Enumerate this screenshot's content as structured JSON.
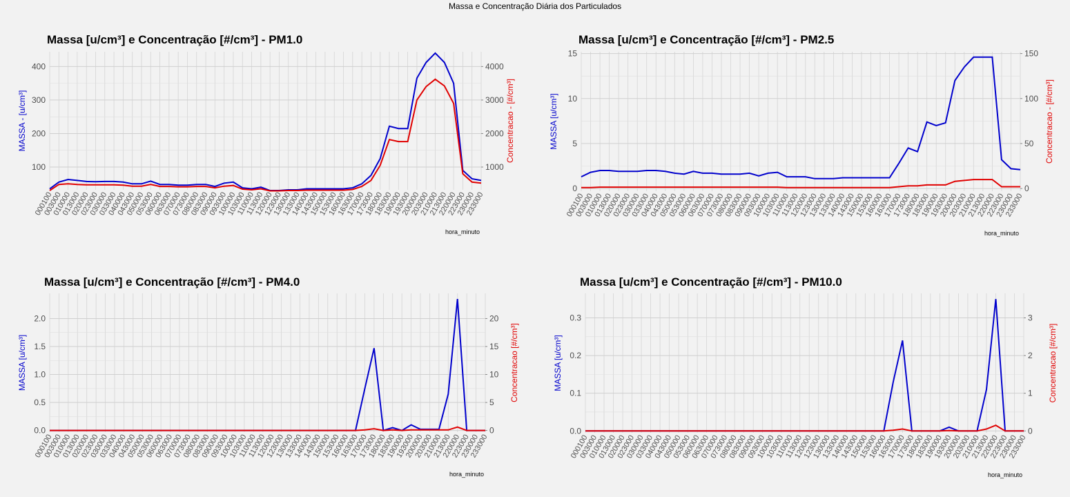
{
  "title": "Massa e Concentração Diária dos Particulados",
  "chart_data": [
    {
      "type": "line",
      "title": "Massa [u/cm³] e Concentração [#/cm³] - PM1.0",
      "xlabel": "hora_minuto",
      "ylabel": "MASSA - [u/cm³]",
      "y2label": "Concentracao - [#/cm³]",
      "categories": [
        "000100",
        "003000",
        "010000",
        "013000",
        "020000",
        "023000",
        "030000",
        "033000",
        "040000",
        "043000",
        "050000",
        "053000",
        "060000",
        "063000",
        "070000",
        "073000",
        "080000",
        "083000",
        "090000",
        "093000",
        "100000",
        "103000",
        "110000",
        "113000",
        "120000",
        "123000",
        "130000",
        "133000",
        "140000",
        "143000",
        "150000",
        "153000",
        "160000",
        "163000",
        "170000",
        "173000",
        "180000",
        "183000",
        "190000",
        "193000",
        "200000",
        "203000",
        "210000",
        "213000",
        "220000",
        "223000",
        "230000",
        "233000"
      ],
      "series": [
        {
          "color": "#0000cc",
          "values": [
            35,
            55,
            63,
            60,
            57,
            56,
            57,
            57,
            55,
            50,
            50,
            58,
            48,
            48,
            46,
            46,
            48,
            48,
            42,
            52,
            55,
            38,
            35,
            40,
            30,
            30,
            32,
            32,
            35,
            35,
            35,
            35,
            35,
            38,
            50,
            75,
            125,
            222,
            215,
            215,
            365,
            412,
            440,
            412,
            350,
            90,
            65,
            60
          ]
        },
        {
          "color": "#e00000",
          "axis": "y2",
          "values": [
            300,
            480,
            500,
            480,
            470,
            470,
            470,
            470,
            460,
            430,
            430,
            480,
            420,
            420,
            410,
            410,
            420,
            420,
            380,
            430,
            450,
            340,
            320,
            350,
            290,
            290,
            300,
            300,
            310,
            310,
            310,
            310,
            310,
            330,
            420,
            600,
            1050,
            1820,
            1760,
            1760,
            3000,
            3400,
            3620,
            3420,
            2900,
            800,
            550,
            520
          ]
        }
      ],
      "ylim": [
        32,
        444
      ],
      "yticks": [
        100,
        200,
        300,
        400
      ],
      "y2lim": [
        320,
        4440
      ],
      "y2ticks": [
        1000,
        2000,
        3000,
        4000
      ],
      "grid": true
    },
    {
      "type": "line",
      "title": "Massa [u/cm³] e Concentração [#/cm³] - PM2.5",
      "xlabel": "hora_minuto",
      "ylabel": "MASSA [u/cm³]",
      "y2label": "Concentracao - [#/cm³]",
      "categories": [
        "000100",
        "003000",
        "010000",
        "013000",
        "020000",
        "023000",
        "030000",
        "033000",
        "040000",
        "043000",
        "050000",
        "053000",
        "060000",
        "063000",
        "070000",
        "073000",
        "080000",
        "083000",
        "090000",
        "093000",
        "100000",
        "103000",
        "110000",
        "113000",
        "120000",
        "123000",
        "130000",
        "133000",
        "140000",
        "143000",
        "150000",
        "153000",
        "160000",
        "163000",
        "170000",
        "173000",
        "180000",
        "183000",
        "190000",
        "193000",
        "200000",
        "203000",
        "210000",
        "213000",
        "220000",
        "223000",
        "230000",
        "233000"
      ],
      "series": [
        {
          "color": "#0000cc",
          "values": [
            1.3,
            1.8,
            2.0,
            2.0,
            1.9,
            1.9,
            1.9,
            2.0,
            2.0,
            1.9,
            1.7,
            1.6,
            1.9,
            1.7,
            1.7,
            1.6,
            1.6,
            1.6,
            1.7,
            1.4,
            1.7,
            1.8,
            1.3,
            1.3,
            1.3,
            1.1,
            1.1,
            1.1,
            1.2,
            1.2,
            1.2,
            1.2,
            1.2,
            1.2,
            2.8,
            4.5,
            4.1,
            7.4,
            7.0,
            7.3,
            12.0,
            13.5,
            14.6,
            14.6,
            14.6,
            3.2,
            2.2,
            2.1
          ]
        },
        {
          "color": "#e00000",
          "axis": "y2",
          "values": [
            1,
            1,
            1.5,
            1.5,
            1.5,
            1.5,
            1.5,
            1.5,
            1.5,
            1.5,
            1.5,
            1.5,
            1.5,
            1.5,
            1.5,
            1.5,
            1.5,
            1.5,
            1.5,
            1.5,
            1.5,
            1.5,
            1,
            1,
            1,
            1,
            1,
            1,
            1,
            1,
            1,
            1,
            1,
            1,
            2,
            3,
            3,
            4,
            4,
            4,
            8,
            9,
            10,
            10,
            10,
            2,
            2,
            2
          ]
        }
      ],
      "ylim": [
        -0.3,
        15.2
      ],
      "yticks": [
        0,
        5,
        10,
        15
      ],
      "y2lim": [
        -3,
        152
      ],
      "y2ticks": [
        0,
        50,
        100,
        150
      ],
      "grid": true
    },
    {
      "type": "line",
      "title": "Massa [u/cm³] e Concentração [#/cm³] - PM4.0",
      "xlabel": "hora_minuto",
      "ylabel": "MASSA [u/cm³]",
      "y2label": "Concentracao [#/cm³]",
      "categories": [
        "000100",
        "003000",
        "010000",
        "013000",
        "020000",
        "023000",
        "030000",
        "033000",
        "040000",
        "043000",
        "050000",
        "053000",
        "060000",
        "063000",
        "070000",
        "073000",
        "080000",
        "083000",
        "090000",
        "093000",
        "100000",
        "103000",
        "110000",
        "113000",
        "120000",
        "123000",
        "130000",
        "133000",
        "140000",
        "143000",
        "150000",
        "153000",
        "160000",
        "163000",
        "170000",
        "173000",
        "180000",
        "183000",
        "190000",
        "193000",
        "200000",
        "203000",
        "210000",
        "213000",
        "220000",
        "223000",
        "230000",
        "233000"
      ],
      "series": [
        {
          "color": "#0000cc",
          "values": [
            0,
            0,
            0,
            0,
            0,
            0,
            0,
            0,
            0,
            0,
            0,
            0,
            0,
            0,
            0,
            0,
            0,
            0,
            0,
            0,
            0,
            0,
            0,
            0,
            0,
            0,
            0,
            0,
            0,
            0,
            0,
            0,
            0,
            0,
            0.75,
            1.47,
            0,
            0.05,
            0,
            0.1,
            0.02,
            0.02,
            0.02,
            0.65,
            2.35,
            0,
            0,
            0
          ]
        },
        {
          "color": "#e00000",
          "axis": "y2",
          "values": [
            0,
            0,
            0,
            0,
            0,
            0,
            0,
            0,
            0,
            0,
            0,
            0,
            0,
            0,
            0,
            0,
            0,
            0,
            0,
            0,
            0,
            0,
            0,
            0,
            0,
            0,
            0,
            0,
            0,
            0,
            0,
            0,
            0,
            0,
            0.1,
            0.3,
            0,
            0.1,
            0,
            0.1,
            0.1,
            0.1,
            0.1,
            0.1,
            0.6,
            0,
            0,
            0
          ]
        }
      ],
      "ylim": [
        -0.03,
        2.45
      ],
      "yticks": [
        {
          "value": 0,
          "label": "0.0"
        },
        0.5,
        {
          "value": 1,
          "label": "1.0"
        },
        1.5,
        {
          "value": 2,
          "label": "2.0"
        }
      ],
      "y2lim": [
        -0.3,
        24.5
      ],
      "y2ticks": [
        0,
        5,
        10,
        15,
        20
      ],
      "grid": true
    },
    {
      "type": "line",
      "title": "Massa [u/cm³] e Concentração [#/cm³] - PM10.0",
      "xlabel": "hora_minuto",
      "ylabel": "MASSA [u/cm³]",
      "y2label": "Concentracao [#/cm³]",
      "categories": [
        "000100",
        "003000",
        "010000",
        "013000",
        "020000",
        "023000",
        "030000",
        "033000",
        "040000",
        "043000",
        "050000",
        "053000",
        "060000",
        "063000",
        "070000",
        "073000",
        "080000",
        "083000",
        "090000",
        "093000",
        "100000",
        "103000",
        "110000",
        "113000",
        "120000",
        "123000",
        "130000",
        "133000",
        "140000",
        "143000",
        "150000",
        "153000",
        "160000",
        "163000",
        "170000",
        "173000",
        "180000",
        "183000",
        "190000",
        "193000",
        "200000",
        "203000",
        "210000",
        "213000",
        "220000",
        "223000",
        "230000",
        "233000"
      ],
      "series": [
        {
          "color": "#0000cc",
          "values": [
            0,
            0,
            0,
            0,
            0,
            0,
            0,
            0,
            0,
            0,
            0,
            0,
            0,
            0,
            0,
            0,
            0,
            0,
            0,
            0,
            0,
            0,
            0,
            0,
            0,
            0,
            0,
            0,
            0,
            0,
            0,
            0,
            0,
            0.13,
            0.24,
            0,
            0,
            0,
            0,
            0.01,
            0,
            0,
            0,
            0.11,
            0.35,
            0,
            0,
            0
          ]
        },
        {
          "color": "#e00000",
          "axis": "y2",
          "values": [
            0,
            0,
            0,
            0,
            0,
            0,
            0,
            0,
            0,
            0,
            0,
            0,
            0,
            0,
            0,
            0,
            0,
            0,
            0,
            0,
            0,
            0,
            0,
            0,
            0,
            0,
            0,
            0,
            0,
            0,
            0,
            0,
            0,
            0.02,
            0.05,
            0,
            0,
            0,
            0,
            0.01,
            0,
            0,
            0,
            0.05,
            0.15,
            0,
            0,
            0
          ]
        }
      ],
      "ylim": [
        -0.005,
        0.365
      ],
      "yticks": [
        {
          "value": 0,
          "label": "0.0"
        },
        0.1,
        0.2,
        0.3
      ],
      "y2lim": [
        -0.05,
        3.65
      ],
      "y2ticks": [
        0,
        1,
        2,
        3
      ],
      "grid": true
    }
  ]
}
